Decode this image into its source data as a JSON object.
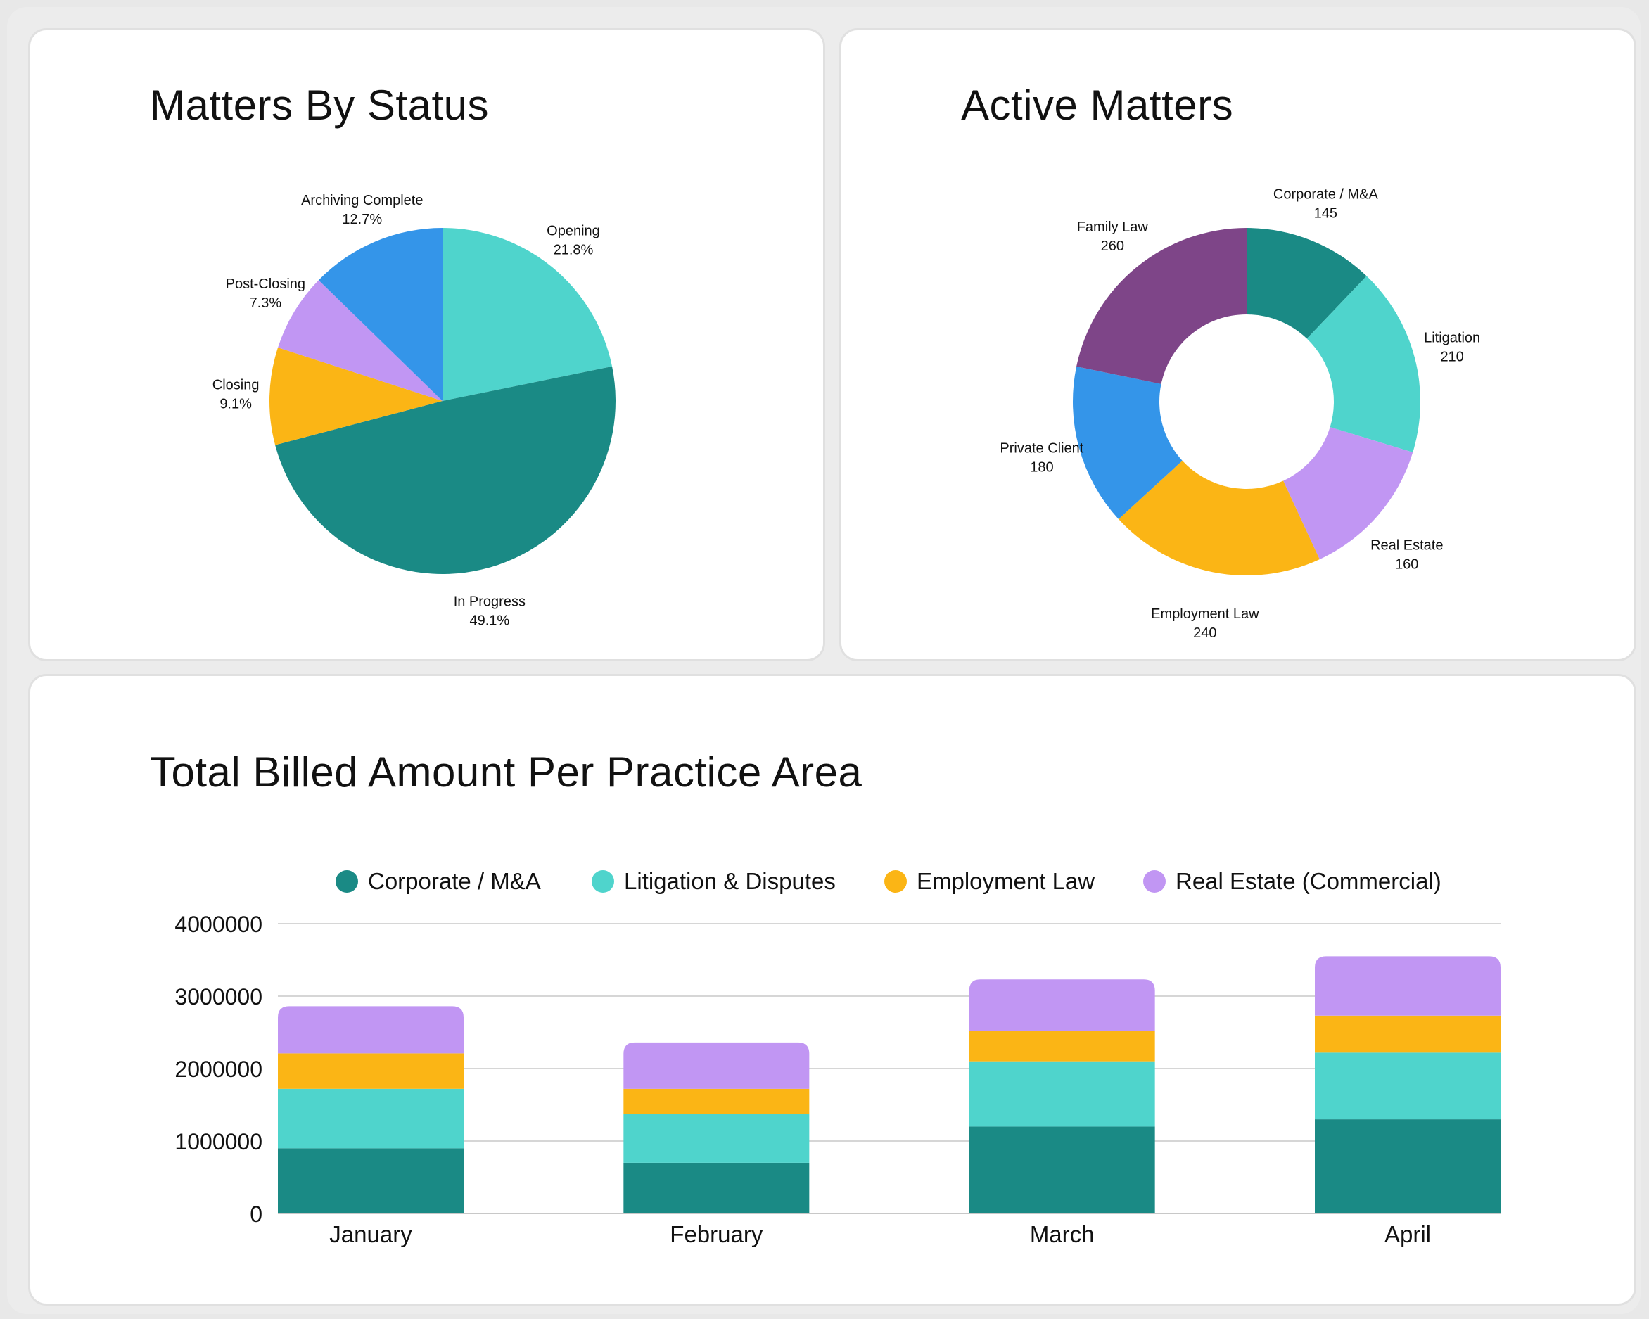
{
  "status_chart": {
    "title": "Matters By Status"
  },
  "active_chart": {
    "title": "Active Matters"
  },
  "billed_chart": {
    "title": "Total Billed Amount Per Practice Area"
  },
  "chart_data": [
    {
      "type": "pie",
      "title": "Matters By Status",
      "slices": [
        {
          "label": "Opening",
          "value": 21.8,
          "value_text": "21.8%",
          "color": "#4fd4cc"
        },
        {
          "label": "In Progress",
          "value": 49.1,
          "value_text": "49.1%",
          "color": "#1a8a85"
        },
        {
          "label": "Closing",
          "value": 9.1,
          "value_text": "9.1%",
          "color": "#fbb515"
        },
        {
          "label": "Post-Closing",
          "value": 7.3,
          "value_text": "7.3%",
          "color": "#c196f3"
        },
        {
          "label": "Archiving Complete",
          "value": 12.7,
          "value_text": "12.7%",
          "color": "#3495e9"
        }
      ]
    },
    {
      "type": "donut",
      "title": "Active Matters",
      "slices": [
        {
          "label": "Corporate / M&A",
          "value": 145,
          "value_text": "145",
          "color": "#1a8a85"
        },
        {
          "label": "Litigation",
          "value": 210,
          "value_text": "210",
          "color": "#4fd4cc"
        },
        {
          "label": "Real Estate",
          "value": 160,
          "value_text": "160",
          "color": "#c196f3"
        },
        {
          "label": "Employment Law",
          "value": 240,
          "value_text": "240",
          "color": "#fbb515"
        },
        {
          "label": "Private Client",
          "value": 180,
          "value_text": "180",
          "color": "#3495e9"
        },
        {
          "label": "Family Law",
          "value": 260,
          "value_text": "260",
          "color": "#7e4588"
        }
      ]
    },
    {
      "type": "bar",
      "stacked": true,
      "title": "Total Billed Amount Per Practice Area",
      "categories": [
        "January",
        "February",
        "March",
        "April"
      ],
      "ylim": [
        0,
        4000000
      ],
      "yticks": [
        "0",
        "1000000",
        "2000000",
        "3000000",
        "4000000"
      ],
      "legend_position": "top",
      "series": [
        {
          "name": "Corporate / M&A",
          "color": "#1a8a85",
          "values": [
            900000,
            700000,
            1200000,
            1300000
          ]
        },
        {
          "name": "Litigation & Disputes",
          "color": "#4fd4cc",
          "values": [
            820000,
            670000,
            900000,
            920000
          ]
        },
        {
          "name": "Employment Law",
          "color": "#fbb515",
          "values": [
            490000,
            350000,
            420000,
            510000
          ]
        },
        {
          "name": "Real Estate (Commercial)",
          "color": "#c196f3",
          "values": [
            650000,
            640000,
            710000,
            820000
          ]
        }
      ]
    }
  ]
}
